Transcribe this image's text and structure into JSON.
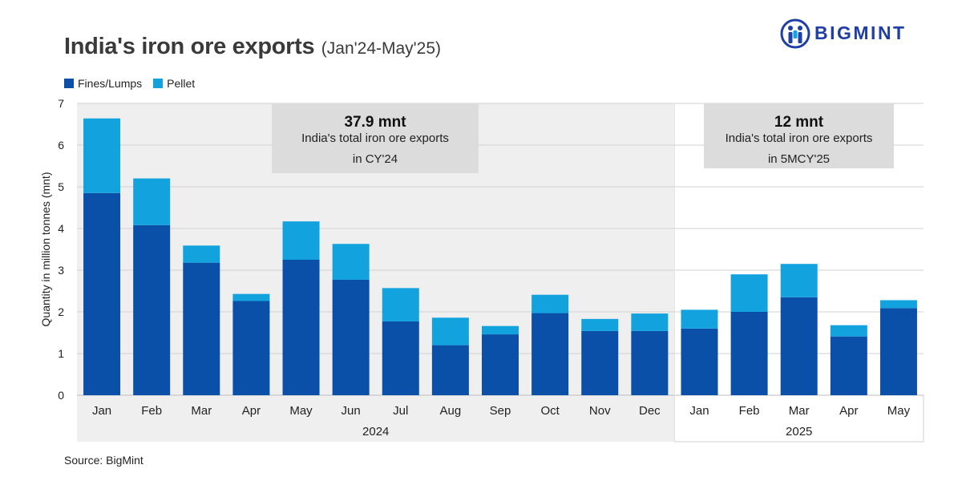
{
  "header": {
    "title": "India's iron ore exports",
    "subtitle": "(Jan'24-May'25)",
    "brand": "BIGMINT"
  },
  "footer": {
    "source": "Source: BigMint"
  },
  "colors": {
    "fines": "#0a4fa8",
    "pellet": "#12a3df",
    "panel": "#efefef",
    "callout": "#dcdcdc",
    "grid": "#d0d0d0"
  },
  "chart_data": {
    "type": "bar",
    "stacked": true,
    "categories": [
      "Jan",
      "Feb",
      "Mar",
      "Apr",
      "May",
      "Jun",
      "Jul",
      "Aug",
      "Sep",
      "Oct",
      "Nov",
      "Dec",
      "Jan",
      "Feb",
      "Mar",
      "Apr",
      "May"
    ],
    "groups": [
      {
        "label": "2024",
        "start": 0,
        "end": 11
      },
      {
        "label": "2025",
        "start": 12,
        "end": 16
      }
    ],
    "series": [
      {
        "name": "Fines/Lumps",
        "values": [
          4.85,
          4.08,
          3.18,
          2.26,
          3.25,
          2.77,
          1.77,
          1.2,
          1.46,
          1.97,
          1.54,
          1.54,
          1.6,
          2.0,
          2.35,
          1.41,
          2.09
        ]
      },
      {
        "name": "Pellet",
        "values": [
          1.79,
          1.12,
          0.41,
          0.17,
          0.92,
          0.86,
          0.8,
          0.66,
          0.2,
          0.44,
          0.29,
          0.42,
          0.45,
          0.9,
          0.8,
          0.27,
          0.19
        ]
      }
    ],
    "ylabel": "Quantity in million tonnes (mnt)",
    "ylim": [
      0,
      7
    ],
    "yticks": [
      0,
      1,
      2,
      3,
      4,
      5,
      6,
      7
    ],
    "grid": true,
    "legend": "top-left",
    "annotations": [
      {
        "value": "37.9 mnt",
        "line1": "India's total iron ore exports",
        "line2": "in CY'24"
      },
      {
        "value": "12 mnt",
        "line1": "India's total iron ore exports",
        "line2": "in 5MCY'25"
      }
    ]
  }
}
